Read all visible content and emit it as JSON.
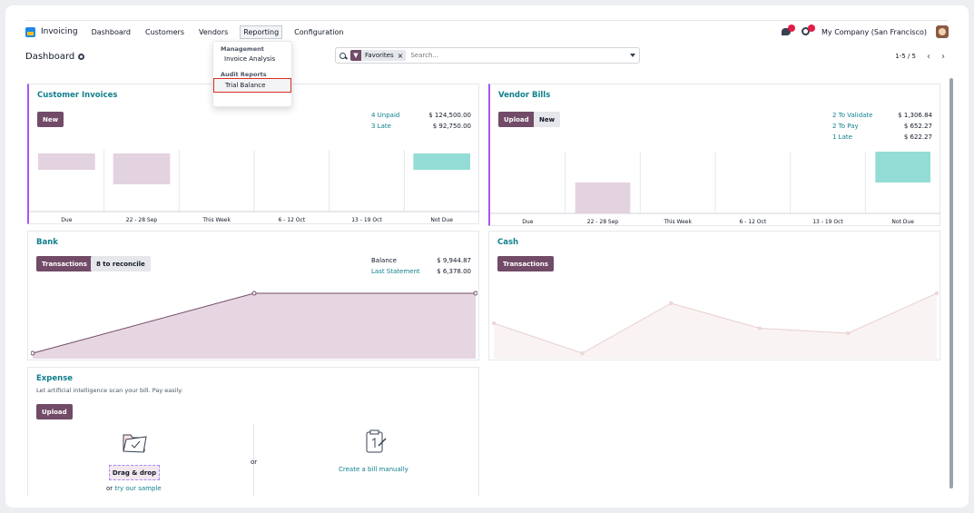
{
  "navbar": {
    "app_name": "Invoicing",
    "menu": [
      "Dashboard",
      "Customers",
      "Vendors",
      "Reporting",
      "Configuration"
    ],
    "company": "My Company (San Francisco)"
  },
  "control": {
    "title": "Dashboard",
    "facet": "Favorites",
    "search_placeholder": "Search...",
    "pager": "1-5 / 5"
  },
  "dropdown": {
    "management_header": "Management",
    "invoice_analysis": "Invoice Analysis",
    "audit_header": "Audit Reports",
    "trial_balance": "Trial Balance"
  },
  "customer_invoices": {
    "title": "Customer Invoices",
    "new_label": "New",
    "stats": [
      {
        "label": "4 Unpaid",
        "value": "$ 124,500.00"
      },
      {
        "label": "3 Late",
        "value": "$ 92,750.00"
      }
    ],
    "chart_data": {
      "type": "bar",
      "categories": [
        "Due",
        "22 - 28 Sep",
        "This Week",
        "6 - 12 Oct",
        "13 - 19 Oct",
        "Not Due"
      ],
      "values": [
        0.45,
        0.85,
        0,
        0,
        0,
        0.45
      ],
      "colors": [
        "#e3d2df",
        "#e3d2df",
        "#e3d2df",
        "#e3d2df",
        "#e3d2df",
        "#93ddd6"
      ]
    }
  },
  "vendor_bills": {
    "title": "Vendor Bills",
    "upload_label": "Upload",
    "new_label": "New",
    "stats": [
      {
        "label": "2 To Validate",
        "value": "$ 1,306.84"
      },
      {
        "label": "2 To Pay",
        "value": "$ 652.27"
      },
      {
        "label": "1 Late",
        "value": "$ 622.27"
      }
    ],
    "chart_data": {
      "type": "bar",
      "categories": [
        "Due",
        "22 - 28 Sep",
        "This Week",
        "6 - 12 Oct",
        "13 - 19 Oct",
        "Not Due"
      ],
      "values": [
        0,
        0.5,
        0,
        0,
        0,
        0.5
      ],
      "colors": [
        "#e3d2df",
        "#e3d2df",
        "#e3d2df",
        "#e3d2df",
        "#e3d2df",
        "#93ddd6"
      ]
    }
  },
  "bank": {
    "title": "Bank",
    "transactions_label": "Transactions",
    "reconcile_label": "8 to reconcile",
    "stats": [
      {
        "label": "Balance",
        "value": "$ 9,944.87"
      },
      {
        "label": "Last Statement",
        "value": "$ 6,378.00"
      }
    ],
    "chart_data": {
      "type": "area",
      "values": [
        0,
        6378,
        6378
      ],
      "color": "#714b67"
    }
  },
  "cash": {
    "title": "Cash",
    "transactions_label": "Transactions",
    "chart_data": {
      "type": "area",
      "values": [
        3,
        0,
        5,
        2.5,
        2,
        6
      ],
      "color": "#e8d0cf"
    }
  },
  "expense": {
    "title": "Expense",
    "subtitle": "Let artificial intelligence scan your bill. Pay easily.",
    "upload_label": "Upload",
    "dragdrop_label": "Drag & drop",
    "or_prefix": "or",
    "sample_link": "try our sample",
    "or_label": "or",
    "create_manual": "Create a bill manually"
  }
}
